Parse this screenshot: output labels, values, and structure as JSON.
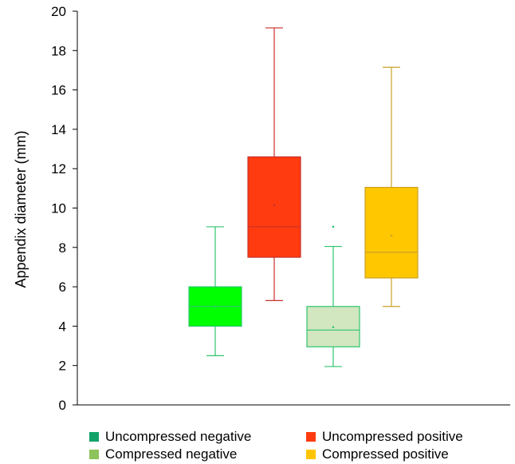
{
  "chart_data": {
    "type": "box",
    "ylabel": "Appendix diameter (mm)",
    "xlabel": "",
    "ylim": [
      0,
      20
    ],
    "yticks": [
      0,
      2,
      4,
      6,
      8,
      10,
      12,
      14,
      16,
      18,
      20
    ],
    "grid": false,
    "legend_position": "bottom",
    "series": [
      {
        "name": "Uncompressed negative",
        "color": "#00ff00",
        "line_color": "#2ec46e",
        "legend_color": "#13a36a",
        "whisker_low": 2.5,
        "q1": 4.0,
        "median": 5.0,
        "q3": 6.0,
        "whisker_high": 9.05,
        "mean": 5.0,
        "outliers": []
      },
      {
        "name": "Uncompressed positive",
        "color": "#ff3b0f",
        "line_color": "#c8312b",
        "legend_color": "#ff3b0f",
        "whisker_low": 5.3,
        "q1": 7.5,
        "median": 9.05,
        "q3": 12.6,
        "whisker_high": 19.15,
        "mean": 10.15,
        "outliers": []
      },
      {
        "name": "Compressed negative",
        "color": "#d2e6c0",
        "line_color": "#2ec46e",
        "legend_color": "#8cc35a",
        "whisker_low": 1.95,
        "q1": 2.95,
        "median": 3.8,
        "q3": 5.0,
        "whisker_high": 8.05,
        "mean": 3.95,
        "outliers": [
          9.05
        ]
      },
      {
        "name": "Compressed positive",
        "color": "#ffc700",
        "line_color": "#c9a226",
        "legend_color": "#ffc400",
        "whisker_low": 5.0,
        "q1": 6.45,
        "median": 7.75,
        "q3": 11.05,
        "whisker_high": 17.15,
        "mean": 8.6,
        "outliers": []
      }
    ]
  }
}
